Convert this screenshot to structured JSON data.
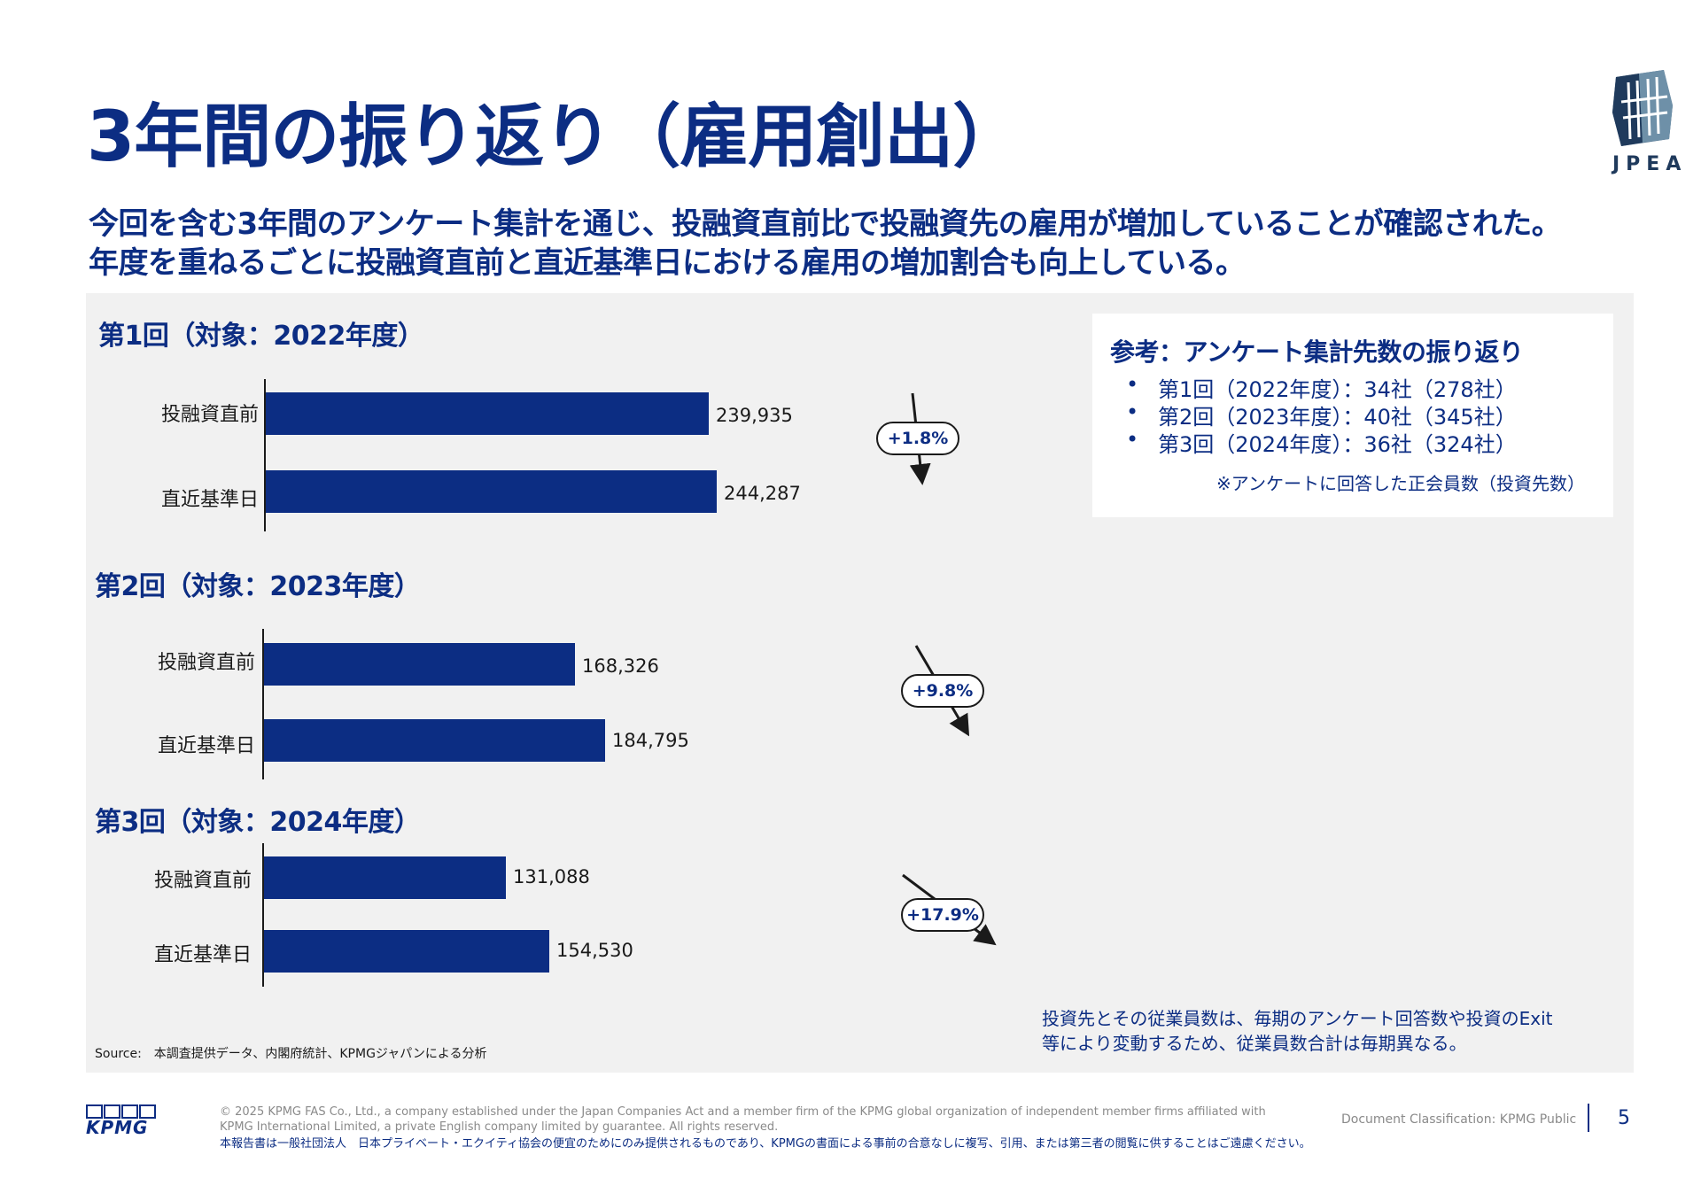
{
  "title": "3年間の振り返り（雇用創出）",
  "logo": {
    "text": "JPEA"
  },
  "subtitle": {
    "line1": "今回を含む3年間のアンケート集計を通じ、投融資直前比で投融資先の雇用が増加していることが確認された。",
    "line2": "年度を重ねるごとに投融資直前と直近基準日における雇用の増加割合も向上している。"
  },
  "chart_data": [
    {
      "type": "bar",
      "title": "第1回（対象：2022年度）",
      "categories": [
        "投融資直前",
        "直近基準日"
      ],
      "values": [
        239935,
        244287
      ],
      "value_labels": [
        "239,935",
        "244,287"
      ],
      "change_label": "+1.8%"
    },
    {
      "type": "bar",
      "title": "第2回（対象：2023年度）",
      "categories": [
        "投融資直前",
        "直近基準日"
      ],
      "values": [
        168326,
        184795
      ],
      "value_labels": [
        "168,326",
        "184,795"
      ],
      "change_label": "+9.8%"
    },
    {
      "type": "bar",
      "title": "第3回（対象：2024年度）",
      "categories": [
        "投融資直前",
        "直近基準日"
      ],
      "values": [
        131088,
        154530
      ],
      "value_labels": [
        "131,088",
        "154,530"
      ],
      "change_label": "+17.9%"
    }
  ],
  "reference": {
    "title": "参考：アンケート集計先数の振り返り",
    "bullet": "•",
    "items": [
      "第1回（2022年度）：34社（278社）",
      "第2回（2023年度）：40社（345社）",
      "第3回（2024年度）：36社（324社）"
    ],
    "note": "※アンケートに回答した正会員数（投資先数）"
  },
  "note_right": {
    "line1": "投資先とその従業員数は、毎期のアンケート回答数や投資のExit",
    "line2": "等により変動するため、従業員数合計は毎期異なる。"
  },
  "source": "Source:　本調査提供データ、内閣府統計、KPMGジャパンによる分析",
  "footer": {
    "copyright_line1": "© 2025 KPMG FAS Co., Ltd., a company established under the Japan Companies Act and a member firm of the KPMG global organization of independent member firms affiliated with",
    "copyright_line2": "KPMG International Limited, a private English company limited by guarantee. All rights reserved.",
    "japanese": "本報告書は一般社団法人　日本プライベート・エクイティ協会の便宜のためにのみ提供されるものであり、KPMGの書面による事前の合意なしに複写、引用、または第三者の閲覧に供することはご遠慮ください。",
    "classification": "Document Classification: KPMG Public",
    "page_number": "5",
    "kpmg_logo_text": "KPMG"
  },
  "colors": {
    "brand": "#0c2d83",
    "panel": "#f1f1f1"
  }
}
